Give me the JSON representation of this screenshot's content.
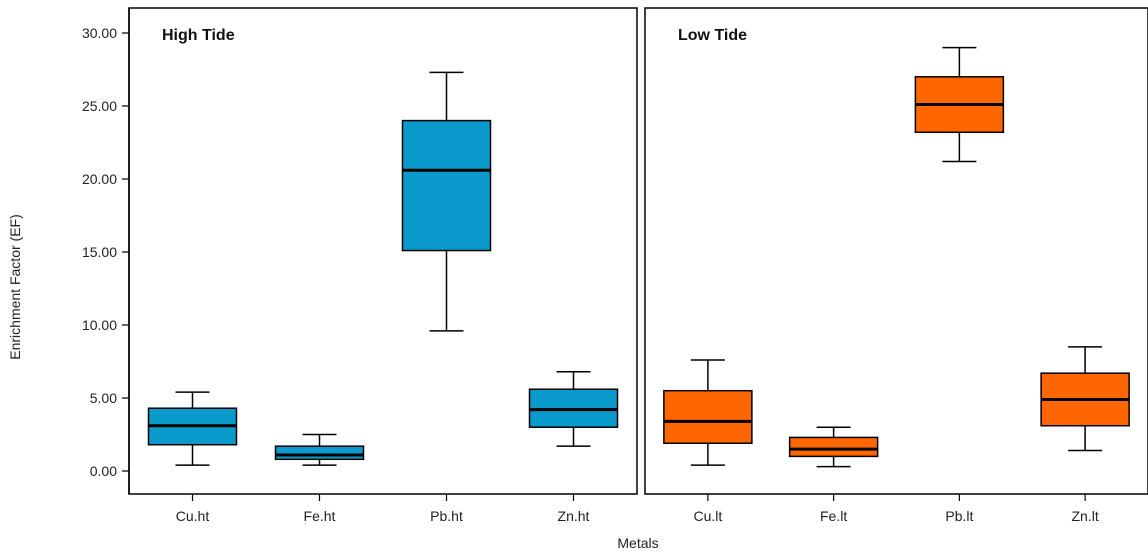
{
  "chart_data": {
    "type": "box",
    "xlabel": "Metals",
    "ylabel": "Enrichment Factor (EF)",
    "ylim": [
      -1.5,
      31.5
    ],
    "yticks": [
      "0.00",
      "5.00",
      "10.00",
      "15.00",
      "20.00",
      "25.00",
      "30.00"
    ],
    "ytick_values": [
      0,
      5,
      10,
      15,
      20,
      25,
      30
    ],
    "panels": [
      {
        "title": "High Tide",
        "color": "#0a9acc",
        "categories": [
          "Cu.ht",
          "Fe.ht",
          "Pb.ht",
          "Zn.ht"
        ],
        "boxes": [
          {
            "category": "Cu.ht",
            "min": 0.4,
            "q1": 1.8,
            "median": 3.1,
            "q3": 4.3,
            "max": 5.4
          },
          {
            "category": "Fe.ht",
            "min": 0.4,
            "q1": 0.8,
            "median": 1.1,
            "q3": 1.7,
            "max": 2.5
          },
          {
            "category": "Pb.ht",
            "min": 9.6,
            "q1": 15.1,
            "median": 20.6,
            "q3": 24.0,
            "max": 27.3
          },
          {
            "category": "Zn.ht",
            "min": 1.7,
            "q1": 3.0,
            "median": 4.2,
            "q3": 5.6,
            "max": 6.8
          }
        ]
      },
      {
        "title": "Low Tide",
        "color": "#ff6600",
        "categories": [
          "Cu.lt",
          "Fe.lt",
          "Pb.lt",
          "Zn.lt"
        ],
        "boxes": [
          {
            "category": "Cu.lt",
            "min": 0.4,
            "q1": 1.9,
            "median": 3.4,
            "q3": 5.5,
            "max": 7.6
          },
          {
            "category": "Fe.lt",
            "min": 0.3,
            "q1": 1.0,
            "median": 1.5,
            "q3": 2.3,
            "max": 3.0
          },
          {
            "category": "Pb.lt",
            "min": 21.2,
            "q1": 23.2,
            "median": 25.1,
            "q3": 27.0,
            "max": 29.0
          },
          {
            "category": "Zn.lt",
            "min": 1.4,
            "q1": 3.1,
            "median": 4.9,
            "q3": 6.7,
            "max": 8.5
          }
        ]
      }
    ],
    "grid": false,
    "legend": "none"
  }
}
